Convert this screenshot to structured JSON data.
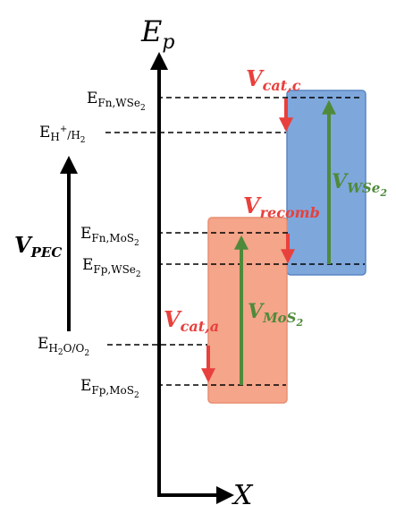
{
  "axes": {
    "y_label_main": "E",
    "y_label_sub": "p",
    "x_label": "X"
  },
  "levels": {
    "efn_wse2": {
      "main": "E",
      "sub": "Fn,WSe",
      "sub2": "2"
    },
    "eh": {
      "main": "E",
      "sub": "H",
      "sup": "+",
      "tail": "/H",
      "sub2": "2"
    },
    "efn_mos2": {
      "main": "E",
      "sub": "Fn,MoS",
      "sub2": "2"
    },
    "efp_wse2": {
      "main": "E",
      "sub": "Fp,WSe",
      "sub2": "2"
    },
    "eh2o": {
      "main": "E",
      "sub": "H",
      "sub_b": "2",
      "sub_c": "O/O",
      "sub2": "2"
    },
    "efp_mos2": {
      "main": "E",
      "sub": "Fp,MoS",
      "sub2": "2"
    }
  },
  "voltages": {
    "v_pec": {
      "main": "V",
      "sub": "PEC"
    },
    "v_cat_c": {
      "main": "V",
      "sub": "cat,c"
    },
    "v_recomb": {
      "main": "V",
      "sub": "recomb"
    },
    "v_cat_a": {
      "main": "V",
      "sub": "cat,a"
    },
    "v_mos2": {
      "main": "V",
      "sub": "MoS",
      "sub2": "2"
    },
    "v_wse2": {
      "main": "V",
      "sub": "WSe",
      "sub2": "2"
    }
  },
  "colors": {
    "wse2_box": "#7ea7dc",
    "wse2_border": "#5a86c2",
    "mos2_box": "#f4a58a",
    "mos2_border": "#e98f73",
    "red_arrow": "#e8403c",
    "green_arrow": "#4f8a3a",
    "axis": "#000000"
  }
}
